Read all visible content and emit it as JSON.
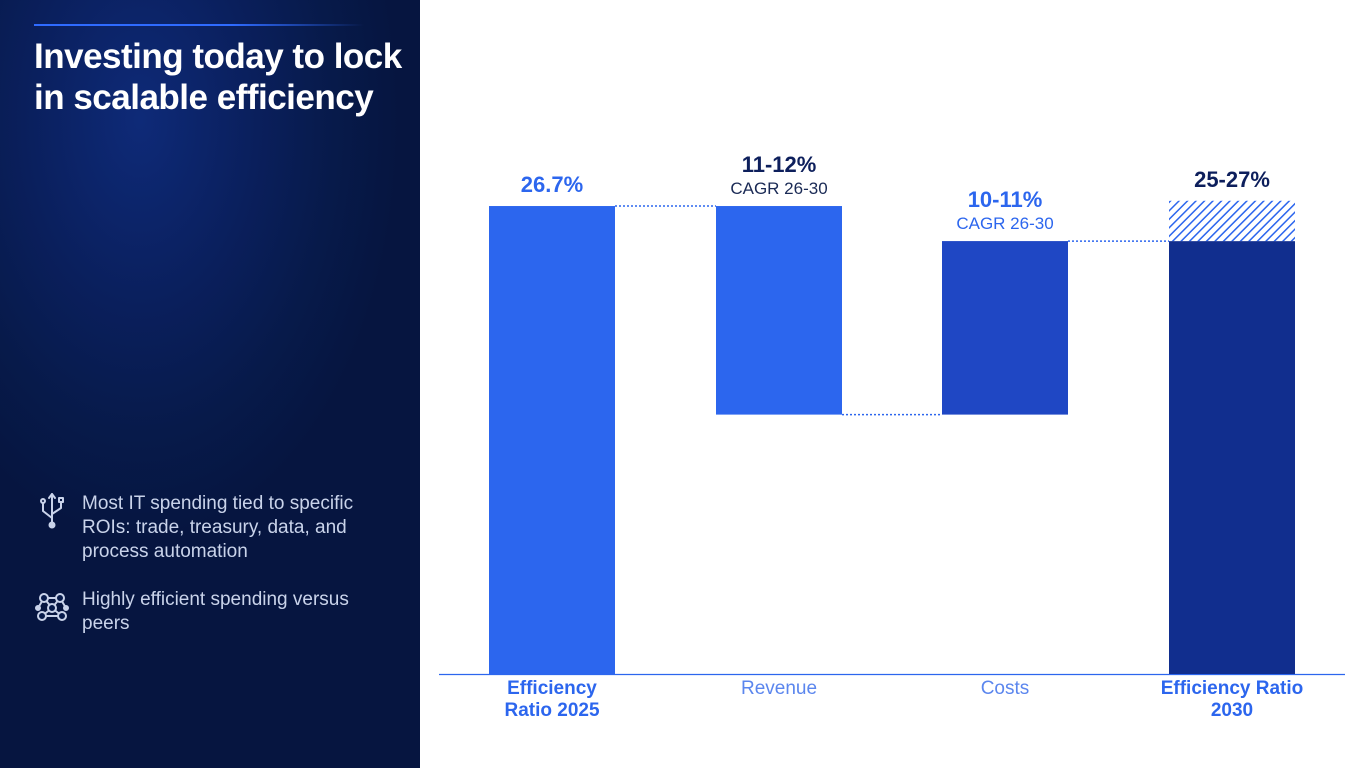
{
  "slide": {
    "title": "Investing today to lock in scalable efficiency",
    "bullets": [
      {
        "icon": "usb-icon",
        "text": "Most IT spending tied to specific ROIs: trade, treasury, data, and process automation"
      },
      {
        "icon": "network-icon",
        "text": "Highly efficient spending versus peers"
      }
    ]
  },
  "colors": {
    "bar_start": "#2c66ee",
    "bar_revenue": "#2c66ee",
    "bar_costs": "#1f47c4",
    "bar_end": "#112e8e",
    "label_light": "#2c66ee",
    "label_dark": "#0d1f5c",
    "axis": "#2c66ee"
  },
  "chart_data": {
    "type": "waterfall",
    "title": "",
    "ylim": [
      0,
      27.9
    ],
    "baseline_label": "",
    "categories": [
      "Efficiency Ratio 2025",
      "Revenue",
      "Costs",
      "Efficiency Ratio 2030"
    ],
    "bars": [
      {
        "category": "Efficiency Ratio 2025",
        "kind": "total",
        "start": 0,
        "end": 26.7,
        "label": "26.7%",
        "sublabel": ""
      },
      {
        "category": "Revenue",
        "kind": "change",
        "start": 26.7,
        "end": 14.8,
        "label": "11-12%",
        "sublabel": "CAGR 26-30"
      },
      {
        "category": "Costs",
        "kind": "change",
        "start": 14.8,
        "end": 24.7,
        "label": "10-11%",
        "sublabel": "CAGR 26-30"
      },
      {
        "category": "Efficiency Ratio 2030",
        "kind": "total_range",
        "start": 0,
        "end": 24.7,
        "range_top": 27.0,
        "label": "25-27%",
        "sublabel": ""
      }
    ]
  }
}
